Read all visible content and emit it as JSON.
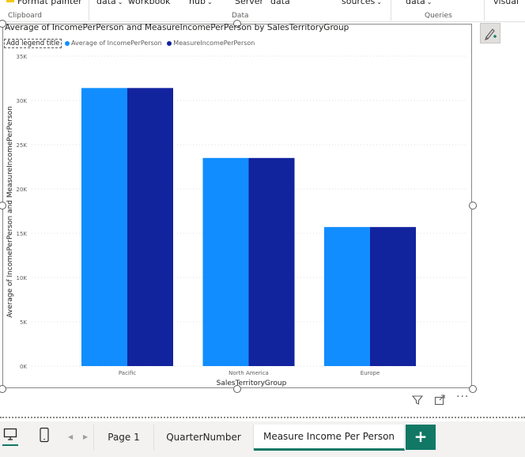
{
  "ribbon": {
    "format_painter": "Format painter",
    "data": "data",
    "workbook": "workbook",
    "hub": "hub",
    "server": "Server",
    "data2": "data",
    "sources": "sources",
    "data3": "data",
    "visual": "visual",
    "groups": {
      "clipboard": "Clipboard",
      "data": "Data",
      "queries": "Queries"
    }
  },
  "visual": {
    "legend": {
      "title": "Add legend title",
      "items": [
        {
          "label": "Average of IncomePerPerson",
          "color": "#118dff"
        },
        {
          "label": "MeasureIncomePerPerson",
          "color": "#12239e"
        }
      ]
    }
  },
  "chart_data": {
    "type": "bar",
    "title": "Average of IncomePerPerson and MeasureIncomePerPerson by SalesTerritoryGroup",
    "xlabel": "SalesTerritoryGroup",
    "ylabel": "Average of IncomePerPerson and MeasureIncomePerPerson",
    "categories": [
      "Pacific",
      "North America",
      "Europe"
    ],
    "series": [
      {
        "name": "Average of IncomePerPerson",
        "values": [
          31400,
          23500,
          15700
        ],
        "color": "#118dff"
      },
      {
        "name": "MeasureIncomePerPerson",
        "values": [
          31400,
          23500,
          15700
        ],
        "color": "#12239e"
      }
    ],
    "ylim": [
      0,
      35000
    ],
    "yticks": [
      "0K",
      "5K",
      "10K",
      "15K",
      "20K",
      "25K",
      "30K",
      "35K"
    ],
    "grid": true,
    "legend_position": "top-left"
  },
  "pages": {
    "tabs": [
      "Page 1",
      "QuarterNumber",
      "Measure Income Per Person"
    ],
    "active": "Measure Income Per Person",
    "add": "+"
  },
  "icons": {
    "filter": "filter-icon",
    "focus": "focus-mode-icon",
    "more": "more-options-icon",
    "desktop": "desktop-view-icon",
    "mobile": "mobile-view-icon"
  }
}
